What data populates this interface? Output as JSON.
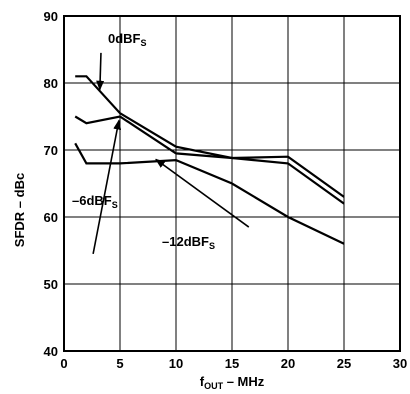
{
  "chart_data": {
    "type": "line",
    "xlim": [
      0,
      30
    ],
    "ylim": [
      40,
      90
    ],
    "x_ticks": [
      "0",
      "5",
      "10",
      "15",
      "20",
      "25",
      "30"
    ],
    "y_ticks": [
      "40",
      "50",
      "60",
      "70",
      "80",
      "90"
    ],
    "xlabel": {
      "main": "f",
      "sub": "OUT",
      "rest": " – MHz"
    },
    "ylabel": "SFDR – dBc",
    "grid": true,
    "series": [
      {
        "name": "0dBFS",
        "label": {
          "main": "0dBF",
          "sub": "S"
        },
        "x": [
          1,
          2,
          5,
          10,
          15,
          20,
          25
        ],
        "y": [
          81,
          81,
          75.5,
          70.5,
          68.8,
          69,
          63
        ]
      },
      {
        "name": "-6dBFS",
        "label": {
          "main": "–6dBF",
          "sub": "S"
        },
        "x": [
          1,
          2,
          5,
          10,
          15,
          20,
          25
        ],
        "y": [
          75,
          74,
          75,
          69.5,
          68.8,
          68,
          62
        ]
      },
      {
        "name": "-12dBFS",
        "label": {
          "main": "–12dBF",
          "sub": "S"
        },
        "x": [
          1,
          2,
          5,
          10,
          15,
          20,
          25
        ],
        "y": [
          71,
          68,
          68,
          68.5,
          65,
          60,
          56
        ]
      }
    ]
  }
}
